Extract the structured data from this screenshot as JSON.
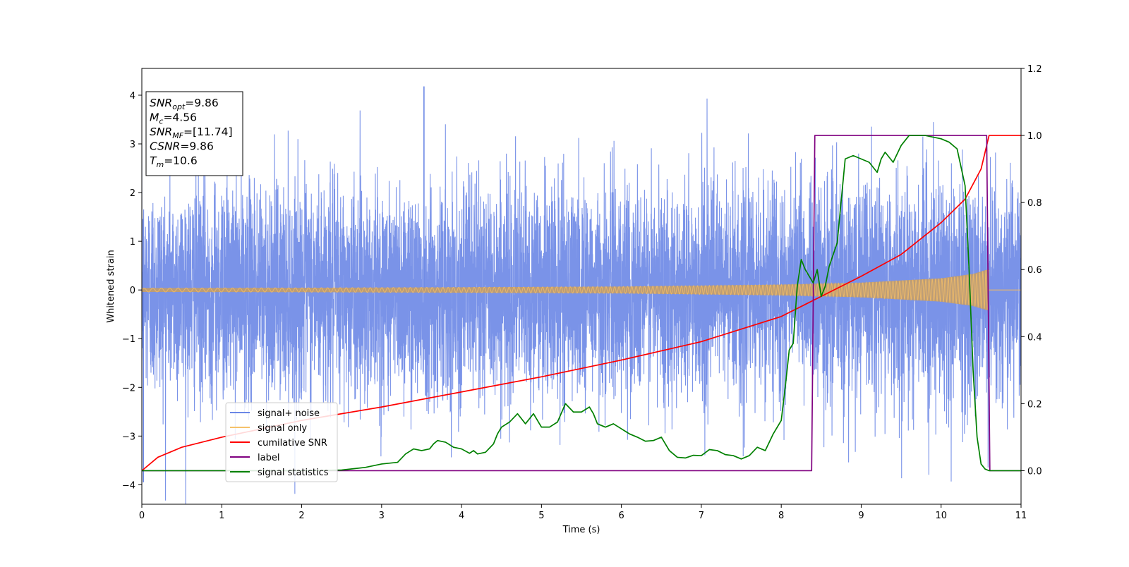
{
  "chart_data": {
    "type": "line",
    "xlabel": "Time (s)",
    "ylabel": "Whitened strain",
    "xlim": [
      0,
      11
    ],
    "ylim_left": [
      -4.4,
      4.55
    ],
    "ylim_right": [
      -0.1,
      1.2
    ],
    "x_ticks": [
      0,
      1,
      2,
      3,
      4,
      5,
      6,
      7,
      8,
      9,
      10,
      11
    ],
    "x_tick_labels": [
      "0",
      "1",
      "2",
      "3",
      "4",
      "5",
      "6",
      "7",
      "8",
      "9",
      "10",
      "11"
    ],
    "y_left_ticks": [
      -4,
      -3,
      -2,
      -1,
      0,
      1,
      2,
      3,
      4
    ],
    "y_left_tick_labels": [
      "−4",
      "−3",
      "−2",
      "−1",
      "0",
      "1",
      "2",
      "3",
      "4"
    ],
    "y_right_ticks": [
      0.0,
      0.2,
      0.4,
      0.6,
      0.8,
      1.0,
      1.2
    ],
    "y_right_tick_labels": [
      "0.0",
      "0.2",
      "0.4",
      "0.6",
      "0.8",
      "1.0",
      "1.2"
    ],
    "grid": false,
    "legend_position": "lower-left",
    "series": [
      {
        "name": "signal+ noise",
        "axis": "left",
        "color": "#6b87e6",
        "style": "noise",
        "typical_band": [
          -1.4,
          1.4
        ],
        "extreme_values": [
          4.18,
          -3.95
        ]
      },
      {
        "name": "signal only",
        "axis": "left",
        "color": "#f5c26b",
        "style": "chirp",
        "amplitude_x": [
          0,
          2,
          4,
          6,
          8,
          9,
          10,
          10.4,
          10.58
        ],
        "amplitude_y": [
          0.04,
          0.045,
          0.055,
          0.07,
          0.11,
          0.15,
          0.24,
          0.33,
          0.42
        ],
        "end_time": 10.6
      },
      {
        "name": "cumilative SNR",
        "axis": "right",
        "color": "#ff0000",
        "x": [
          0,
          0.2,
          0.5,
          1,
          2,
          3,
          4,
          5,
          6,
          7,
          8,
          8.5,
          9,
          9.5,
          10,
          10.3,
          10.5,
          10.6,
          11
        ],
        "y": [
          0.0,
          0.04,
          0.07,
          0.1,
          0.15,
          0.19,
          0.235,
          0.28,
          0.33,
          0.385,
          0.46,
          0.52,
          0.58,
          0.645,
          0.74,
          0.81,
          0.9,
          1.0,
          1.0
        ]
      },
      {
        "name": "label",
        "axis": "right",
        "color": "#800080",
        "x": [
          0,
          8.38,
          8.42,
          10.57,
          10.61,
          11
        ],
        "y": [
          0,
          0,
          1,
          1,
          0,
          0
        ]
      },
      {
        "name": "signal statistics",
        "axis": "right",
        "color": "#008000",
        "x": [
          0,
          1,
          2,
          2.5,
          2.8,
          3.0,
          3.2,
          3.3,
          3.4,
          3.5,
          3.6,
          3.65,
          3.7,
          3.8,
          3.9,
          4.0,
          4.1,
          4.15,
          4.2,
          4.3,
          4.4,
          4.45,
          4.5,
          4.6,
          4.7,
          4.8,
          4.9,
          5.0,
          5.1,
          5.2,
          5.3,
          5.4,
          5.5,
          5.6,
          5.65,
          5.7,
          5.8,
          5.9,
          6.0,
          6.1,
          6.2,
          6.3,
          6.4,
          6.5,
          6.6,
          6.7,
          6.8,
          6.9,
          7.0,
          7.1,
          7.2,
          7.3,
          7.4,
          7.5,
          7.6,
          7.7,
          7.8,
          7.9,
          8.0,
          8.05,
          8.1,
          8.15,
          8.2,
          8.25,
          8.3,
          8.35,
          8.4,
          8.45,
          8.5,
          8.55,
          8.6,
          8.7,
          8.8,
          8.9,
          9.0,
          9.1,
          9.2,
          9.25,
          9.3,
          9.4,
          9.5,
          9.6,
          9.7,
          9.8,
          9.9,
          10.0,
          10.1,
          10.2,
          10.3,
          10.35,
          10.4,
          10.45,
          10.5,
          10.55,
          10.6,
          10.7,
          10.8,
          11.0
        ],
        "y": [
          0.0,
          0.0,
          0.0,
          0.002,
          0.01,
          0.02,
          0.025,
          0.05,
          0.065,
          0.06,
          0.065,
          0.08,
          0.09,
          0.085,
          0.07,
          0.065,
          0.052,
          0.06,
          0.05,
          0.055,
          0.08,
          0.11,
          0.13,
          0.145,
          0.17,
          0.14,
          0.17,
          0.13,
          0.13,
          0.145,
          0.2,
          0.175,
          0.175,
          0.19,
          0.17,
          0.14,
          0.13,
          0.14,
          0.125,
          0.11,
          0.1,
          0.088,
          0.09,
          0.1,
          0.06,
          0.04,
          0.038,
          0.046,
          0.045,
          0.063,
          0.06,
          0.048,
          0.045,
          0.035,
          0.045,
          0.07,
          0.06,
          0.11,
          0.15,
          0.25,
          0.36,
          0.38,
          0.55,
          0.63,
          0.6,
          0.58,
          0.56,
          0.6,
          0.52,
          0.55,
          0.61,
          0.68,
          0.93,
          0.94,
          0.93,
          0.92,
          0.89,
          0.93,
          0.95,
          0.92,
          0.97,
          1.0,
          1.0,
          1.0,
          0.995,
          0.99,
          0.98,
          0.96,
          0.85,
          0.6,
          0.3,
          0.1,
          0.02,
          0.005,
          0.0,
          0.0,
          0.0,
          0.0
        ]
      }
    ],
    "stats_box": {
      "lines": [
        {
          "base": "SNR",
          "sub": "opt",
          "rest": "=9.86"
        },
        {
          "base": "M",
          "sub": "c",
          "rest": "=4.56"
        },
        {
          "base": "SNR",
          "sub": "MF",
          "rest": "=[11.74]"
        },
        {
          "base": "CSNR",
          "sub": "",
          "rest": "=9.86"
        },
        {
          "base": "T",
          "sub": "m",
          "rest": "=10.6"
        }
      ]
    }
  }
}
